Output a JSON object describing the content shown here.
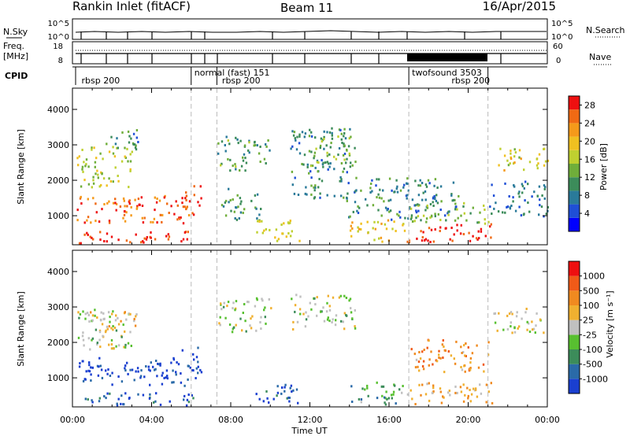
{
  "header": {
    "station": "Rankin Inlet (fitACF)",
    "beam": "Beam 11",
    "date": "16/Apr/2015"
  },
  "noise_panel": {
    "left_label": "N.Sky",
    "right_label": "N.Search",
    "left_ticks": [
      "10^5",
      "10^0"
    ],
    "right_ticks": [
      "10^5",
      "10^0"
    ]
  },
  "freq_panel": {
    "left_label_line1": "Freq.",
    "left_label_line2": "[MHz]",
    "left_ticks": [
      "18",
      "8"
    ],
    "right_label": "Nave",
    "right_ticks": [
      "60",
      "0"
    ]
  },
  "cpid_panel": {
    "label": "CPID",
    "entries": [
      {
        "text": "rbsp 200",
        "start_hour": 0.3,
        "row": 1
      },
      {
        "text": "normal (fast) 151",
        "start_hour": 6.0,
        "row": 0
      },
      {
        "text": "rbsp 200",
        "start_hour": 7.4,
        "row": 1
      },
      {
        "text": "twofsound 3503",
        "start_hour": 17.0,
        "row": 0
      },
      {
        "text": "rbsp 200",
        "start_hour": 19.0,
        "row": 1
      }
    ],
    "boundaries_hour": [
      6.0,
      7.3,
      17.0,
      21.0
    ]
  },
  "chart_data": [
    {
      "type": "heatmap",
      "panel": "power",
      "ylabel": "Slant Range [km]",
      "ylim": [
        180,
        4600
      ],
      "yticks": [
        "1000",
        "2000",
        "3000",
        "4000"
      ],
      "xlim_hours": [
        0,
        24
      ],
      "colorbar": {
        "label": "Power [dB]",
        "ticks": [
          "4",
          "8",
          "12",
          "16",
          "20",
          "24",
          "28"
        ],
        "colors": [
          "#0000ff",
          "#1f4fd6",
          "#2a7a9a",
          "#3c8c5a",
          "#6fae3a",
          "#bfd030",
          "#f0c020",
          "#f59a1a",
          "#f06a14",
          "#ee1010"
        ]
      },
      "regions": [
        {
          "t0": 0.1,
          "t1": 6.1,
          "r0": 250,
          "r1": 600,
          "level": 0.95
        },
        {
          "t0": 0.2,
          "t1": 6.0,
          "r0": 800,
          "r1": 1600,
          "level": 0.85
        },
        {
          "t0": 0.2,
          "t1": 3.0,
          "r0": 1800,
          "r1": 3000,
          "level": 0.55
        },
        {
          "t0": 1.5,
          "t1": 3.3,
          "r0": 2900,
          "r1": 3500,
          "level": 0.3
        },
        {
          "t0": 5.5,
          "t1": 6.5,
          "r0": 1000,
          "r1": 1900,
          "level": 0.9
        },
        {
          "t0": 7.3,
          "t1": 10.0,
          "r0": 2300,
          "r1": 3300,
          "level": 0.4
        },
        {
          "t0": 7.5,
          "t1": 9.5,
          "r0": 900,
          "r1": 1800,
          "level": 0.35
        },
        {
          "t0": 9.2,
          "t1": 11.5,
          "r0": 300,
          "r1": 900,
          "level": 0.6
        },
        {
          "t0": 11.0,
          "t1": 14.0,
          "r0": 1500,
          "r1": 3500,
          "level": 0.3
        },
        {
          "t0": 12.0,
          "t1": 14.3,
          "r0": 2400,
          "r1": 3300,
          "level": 0.45
        },
        {
          "t0": 14.0,
          "t1": 16.8,
          "r0": 280,
          "r1": 900,
          "level": 0.65
        },
        {
          "t0": 13.8,
          "t1": 19.5,
          "r0": 900,
          "r1": 2100,
          "level": 0.3
        },
        {
          "t0": 16.8,
          "t1": 21.2,
          "r0": 280,
          "r1": 800,
          "level": 0.95
        },
        {
          "t0": 17.0,
          "t1": 21.0,
          "r0": 800,
          "r1": 1400,
          "level": 0.45
        },
        {
          "t0": 21.0,
          "t1": 24.0,
          "r0": 1000,
          "r1": 2000,
          "level": 0.25
        },
        {
          "t0": 21.5,
          "t1": 24.0,
          "r0": 2300,
          "r1": 3000,
          "level": 0.6
        }
      ]
    },
    {
      "type": "heatmap",
      "panel": "velocity",
      "ylabel": "Slant Range [km]",
      "ylim": [
        180,
        4600
      ],
      "yticks": [
        "1000",
        "2000",
        "3000",
        "4000"
      ],
      "xlim_hours": [
        0,
        24
      ],
      "xticks": [
        "00:00",
        "04:00",
        "08:00",
        "12:00",
        "16:00",
        "20:00",
        "00:00"
      ],
      "xlabel": "Time UT",
      "colorbar": {
        "label": "Velocity [m s⁻¹]",
        "ticks": [
          "1000",
          "500",
          "100",
          "25",
          "-25",
          "-100",
          "-500",
          "-1000"
        ],
        "colors": [
          "#1a3fd0",
          "#2a6aa8",
          "#3c8c5a",
          "#58c030",
          "#c0c0c0",
          "#f0b030",
          "#f08a20",
          "#f05a18",
          "#ee1010"
        ]
      },
      "regions": [
        {
          "t0": 0.1,
          "t1": 6.1,
          "r0": 250,
          "r1": 600,
          "level": 0.15
        },
        {
          "t0": 0.2,
          "t1": 6.0,
          "r0": 800,
          "r1": 1600,
          "level": 0.02
        },
        {
          "t0": 0.2,
          "t1": 3.0,
          "r0": 1800,
          "r1": 3000,
          "level": 0.45
        },
        {
          "t0": 0.5,
          "t1": 3.2,
          "r0": 2300,
          "r1": 2900,
          "level": 0.6
        },
        {
          "t0": 5.5,
          "t1": 6.5,
          "r0": 1000,
          "r1": 1900,
          "level": 0.05
        },
        {
          "t0": 7.3,
          "t1": 10.0,
          "r0": 2300,
          "r1": 3300,
          "level": 0.45
        },
        {
          "t0": 9.2,
          "t1": 11.5,
          "r0": 300,
          "r1": 900,
          "level": 0.1
        },
        {
          "t0": 11.0,
          "t1": 14.3,
          "r0": 2400,
          "r1": 3400,
          "level": 0.45
        },
        {
          "t0": 14.0,
          "t1": 16.8,
          "r0": 280,
          "r1": 900,
          "level": 0.32
        },
        {
          "t0": 16.8,
          "t1": 21.2,
          "r0": 280,
          "r1": 900,
          "level": 0.62
        },
        {
          "t0": 17.0,
          "t1": 21.0,
          "r0": 1200,
          "r1": 2100,
          "level": 0.7
        },
        {
          "t0": 21.0,
          "t1": 24.0,
          "r0": 2300,
          "r1": 3000,
          "level": 0.5
        }
      ]
    }
  ]
}
